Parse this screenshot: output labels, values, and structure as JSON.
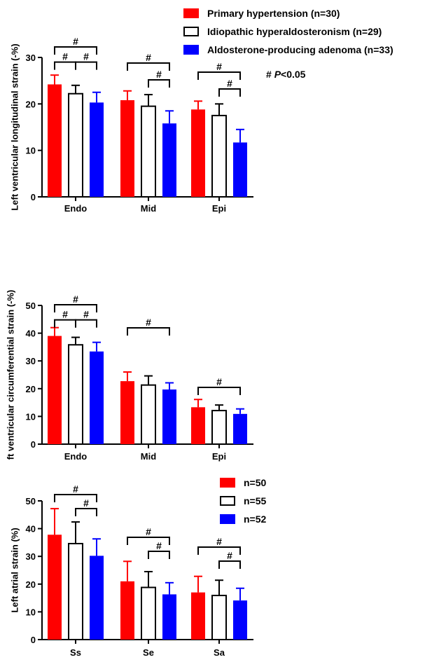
{
  "colors": {
    "primary": "#ff0000",
    "idiopathic": "#ffffff",
    "aldosterone": "#0000ff",
    "ink": "#000000"
  },
  "legend_top": [
    {
      "label": "Primary hypertension (n=30)",
      "color": "#ff0000"
    },
    {
      "label": "Idiopathic hyperaldosteronism (n=29)",
      "color": "#ffffff"
    },
    {
      "label": "Aldosterone-producing adenoma (n=33)",
      "color": "#0000ff"
    }
  ],
  "legend_bottom": [
    {
      "label": "n=50",
      "color": "#ff0000"
    },
    {
      "label": "n=55",
      "color": "#ffffff"
    },
    {
      "label": "n=52",
      "color": "#0000ff"
    }
  ],
  "significance_note": {
    "symbol": "#",
    "p": "P",
    "rest": "<0.05"
  },
  "chart_data": [
    {
      "type": "bar",
      "ylabel": "Left ventricular longitudinal strain (-%)",
      "ylim": [
        0,
        30
      ],
      "yticks": [
        0,
        10,
        20,
        30
      ],
      "categories": [
        "Endo",
        "Mid",
        "Epi"
      ],
      "series": [
        {
          "name": "Primary hypertension (n=30)",
          "color": "#ff0000",
          "values": [
            24.2,
            20.8,
            18.8
          ],
          "errors": [
            2.0,
            2.0,
            1.8
          ]
        },
        {
          "name": "Idiopathic hyperaldosteronism (n=29)",
          "color": "#ffffff",
          "values": [
            22.2,
            19.5,
            17.5
          ],
          "errors": [
            1.8,
            2.5,
            2.5
          ]
        },
        {
          "name": "Aldosterone-producing adenoma (n=33)",
          "color": "#0000ff",
          "values": [
            20.3,
            15.8,
            11.7
          ],
          "errors": [
            2.2,
            2.7,
            2.8
          ]
        }
      ],
      "significance": [
        {
          "category": 0,
          "from": 0,
          "to": 1,
          "label": "#"
        },
        {
          "category": 0,
          "from": 1,
          "to": 2,
          "label": "#"
        },
        {
          "category": 0,
          "from": 0,
          "to": 2,
          "label": "#"
        },
        {
          "category": 1,
          "from": 1,
          "to": 2,
          "label": "#"
        },
        {
          "category": 1,
          "from": 0,
          "to": 2,
          "label": "#"
        },
        {
          "category": 2,
          "from": 1,
          "to": 2,
          "label": "#"
        },
        {
          "category": 2,
          "from": 0,
          "to": 2,
          "label": "#"
        }
      ]
    },
    {
      "type": "bar",
      "ylabel": "ft ventricular circumferential strain (-%)",
      "ylim": [
        0,
        50
      ],
      "yticks": [
        0,
        10,
        20,
        30,
        40,
        50
      ],
      "categories": [
        "Endo",
        "Mid",
        "Epi"
      ],
      "series": [
        {
          "name": "Primary hypertension (n=30)",
          "color": "#ff0000",
          "values": [
            39.0,
            22.7,
            13.3
          ],
          "errors": [
            3.0,
            3.3,
            2.8
          ]
        },
        {
          "name": "Idiopathic hyperaldosteronism (n=29)",
          "color": "#ffffff",
          "values": [
            35.8,
            21.3,
            12.1
          ],
          "errors": [
            2.7,
            3.3,
            2.0
          ]
        },
        {
          "name": "Aldosterone-producing adenoma (n=33)",
          "color": "#0000ff",
          "values": [
            33.4,
            19.7,
            10.9
          ],
          "errors": [
            3.3,
            2.4,
            1.8
          ]
        }
      ],
      "significance": [
        {
          "category": 0,
          "from": 0,
          "to": 1,
          "label": "#"
        },
        {
          "category": 0,
          "from": 1,
          "to": 2,
          "label": "#"
        },
        {
          "category": 0,
          "from": 0,
          "to": 2,
          "label": "#"
        },
        {
          "category": 1,
          "from": 0,
          "to": 2,
          "label": "#"
        },
        {
          "category": 2,
          "from": 0,
          "to": 2,
          "label": "#"
        }
      ]
    },
    {
      "type": "bar",
      "ylabel": "Left atrial strain (%)",
      "ylim": [
        0,
        50
      ],
      "yticks": [
        0,
        10,
        20,
        30,
        40,
        50
      ],
      "categories": [
        "Ss",
        "Se",
        "Sa"
      ],
      "series": [
        {
          "name": "n=50",
          "color": "#ff0000",
          "values": [
            37.8,
            21.0,
            17.0
          ],
          "errors": [
            9.4,
            7.2,
            5.8
          ]
        },
        {
          "name": "n=55",
          "color": "#ffffff",
          "values": [
            34.6,
            18.8,
            15.9
          ],
          "errors": [
            7.8,
            5.7,
            5.5
          ]
        },
        {
          "name": "n=52",
          "color": "#0000ff",
          "values": [
            30.2,
            16.3,
            14.1
          ],
          "errors": [
            6.1,
            4.2,
            4.4
          ]
        }
      ],
      "significance": [
        {
          "category": 0,
          "from": 1,
          "to": 2,
          "label": "#"
        },
        {
          "category": 0,
          "from": 0,
          "to": 2,
          "label": "#"
        },
        {
          "category": 1,
          "from": 1,
          "to": 2,
          "label": "#"
        },
        {
          "category": 1,
          "from": 0,
          "to": 2,
          "label": "#"
        },
        {
          "category": 2,
          "from": 1,
          "to": 2,
          "label": "#"
        },
        {
          "category": 2,
          "from": 0,
          "to": 2,
          "label": "#"
        }
      ]
    }
  ]
}
